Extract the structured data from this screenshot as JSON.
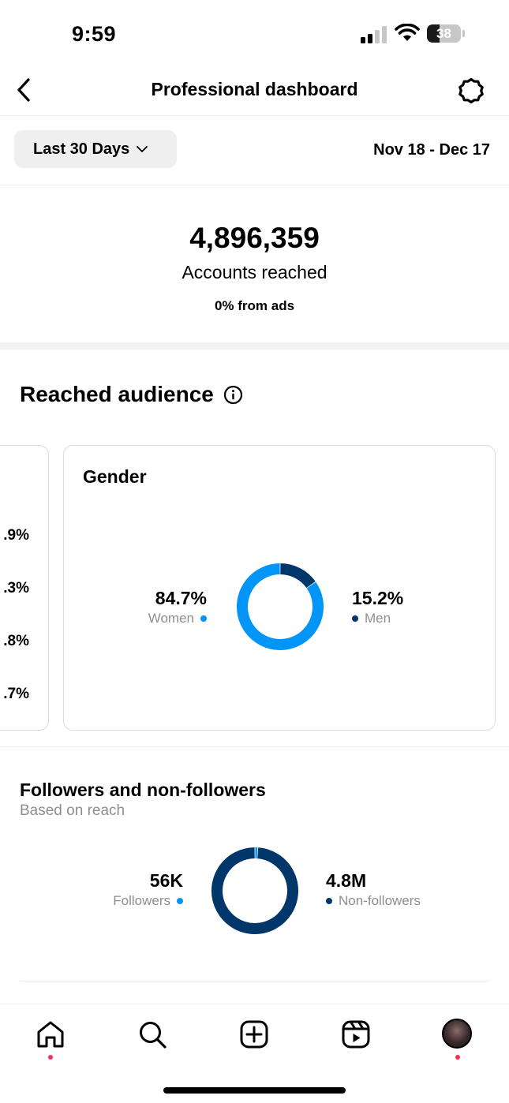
{
  "status_bar": {
    "time": "9:59",
    "battery": "38",
    "battery_level": 0.38
  },
  "header": {
    "title": "Professional dashboard",
    "back_icon": "chevron-left-icon",
    "settings_icon": "gear-icon"
  },
  "date_filter": {
    "range_label": "Last 30 Days",
    "dates": "Nov 18 - Dec 17"
  },
  "reach": {
    "value": "4,896,359",
    "label": "Accounts reached",
    "ads": "0% from ads"
  },
  "audience": {
    "title": "Reached audience",
    "prev_card_values": [
      ".9%",
      ".3%",
      ".8%",
      ".7%"
    ],
    "gender": {
      "title": "Gender",
      "women_value": "84.7%",
      "women_label": "Women",
      "men_value": "15.2%",
      "men_label": "Men",
      "women_share": 84.7,
      "men_share": 15.2
    }
  },
  "followers": {
    "title": "Followers and non-followers",
    "subtitle": "Based on reach",
    "followers_value": "56K",
    "followers_label": "Followers",
    "non_followers_value": "4.8M",
    "non_followers_label": "Non-followers",
    "followers_share": 1.1,
    "non_followers_share": 98.9
  },
  "colors": {
    "light_blue": "#0095f6",
    "dark_blue": "#00376b",
    "notification_dot": "#ff2d55"
  },
  "nav": {
    "items": [
      "home-icon",
      "search-icon",
      "create-icon",
      "reels-icon",
      "profile-avatar"
    ]
  }
}
